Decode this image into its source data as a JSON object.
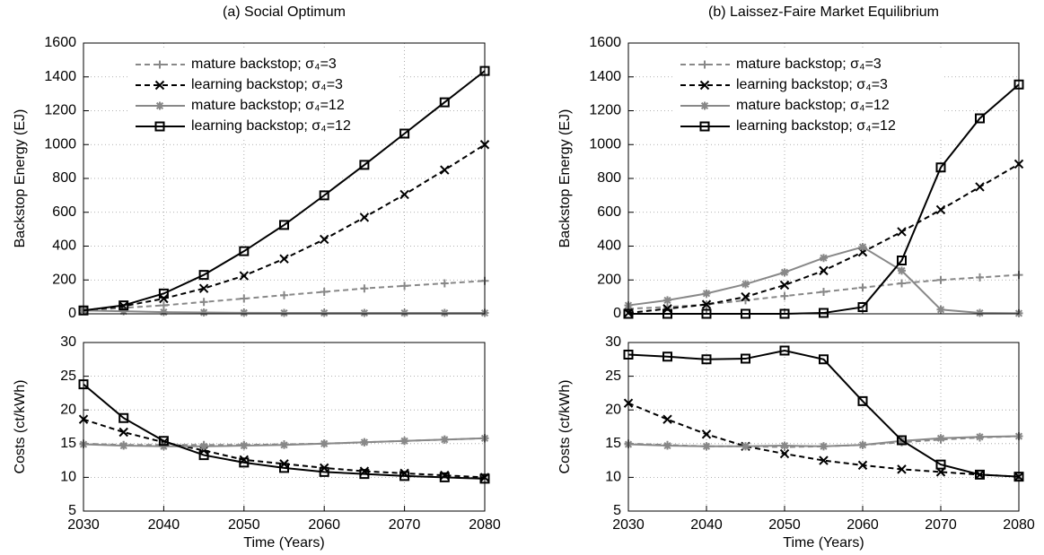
{
  "chart_data": [
    {
      "type": "line",
      "title": "(a) Social Optimum",
      "ylabel": "Backstop Energy (EJ)",
      "legend": "upper left",
      "grid": true,
      "x": [
        2030,
        2035,
        2040,
        2045,
        2050,
        2055,
        2060,
        2065,
        2070,
        2075,
        2080
      ],
      "xlim": [
        2030,
        2080
      ],
      "xticks": [
        2030,
        2040,
        2050,
        2060,
        2070,
        2080
      ],
      "ylim": [
        0,
        1600
      ],
      "yticks": [
        0,
        200,
        400,
        600,
        800,
        1000,
        1200,
        1400,
        1600
      ],
      "series": [
        {
          "name": "mature backstop; σ₄=3",
          "color": "#888888",
          "dash": "dashed",
          "marker": "plus",
          "values": [
            20,
            35,
            50,
            70,
            90,
            110,
            130,
            150,
            165,
            180,
            195
          ]
        },
        {
          "name": "learning backstop; σ₄=3",
          "color": "#000000",
          "dash": "dashed",
          "marker": "x",
          "values": [
            20,
            45,
            90,
            150,
            225,
            325,
            440,
            570,
            705,
            850,
            1000
          ]
        },
        {
          "name": "mature backstop; σ₄=12",
          "color": "#888888",
          "dash": "solid",
          "marker": "star",
          "values": [
            20,
            15,
            10,
            8,
            6,
            5,
            5,
            5,
            5,
            5,
            5
          ]
        },
        {
          "name": "learning backstop; σ₄=12",
          "color": "#000000",
          "dash": "solid",
          "marker": "square",
          "values": [
            20,
            50,
            120,
            230,
            370,
            525,
            700,
            880,
            1065,
            1250,
            1435
          ]
        }
      ]
    },
    {
      "type": "line",
      "ylabel": "Costs (ct/kWh)",
      "xlabel": "Time (Years)",
      "grid": true,
      "x": [
        2030,
        2035,
        2040,
        2045,
        2050,
        2055,
        2060,
        2065,
        2070,
        2075,
        2080
      ],
      "xlim": [
        2030,
        2080
      ],
      "xticks": [
        2030,
        2040,
        2050,
        2060,
        2070,
        2080
      ],
      "ylim": [
        5,
        30
      ],
      "yticks": [
        5,
        10,
        15,
        20,
        25,
        30
      ],
      "series": [
        {
          "color": "#888888",
          "dash": "dashed",
          "marker": "plus",
          "values": [
            15,
            14.8,
            14.8,
            14.8,
            14.8,
            14.9,
            15,
            15.2,
            15.4,
            15.6,
            15.8
          ]
        },
        {
          "color": "#000000",
          "dash": "dashed",
          "marker": "x",
          "values": [
            18.6,
            16.7,
            15.2,
            14,
            12.6,
            12,
            11.4,
            10.9,
            10.6,
            10.3,
            10
          ]
        },
        {
          "color": "#888888",
          "dash": "solid",
          "marker": "star",
          "values": [
            14.9,
            14.7,
            14.6,
            14.6,
            14.7,
            14.8,
            15,
            15.2,
            15.4,
            15.6,
            15.8
          ]
        },
        {
          "color": "#000000",
          "dash": "solid",
          "marker": "square",
          "values": [
            23.8,
            18.8,
            15.4,
            13.3,
            12.2,
            11.4,
            10.8,
            10.5,
            10.2,
            10,
            9.8
          ]
        }
      ]
    },
    {
      "type": "line",
      "title": "(b) Laissez-Faire Market Equilibrium",
      "ylabel": "Backstop Energy (EJ)",
      "legend": "upper left",
      "grid": true,
      "x": [
        2030,
        2035,
        2040,
        2045,
        2050,
        2055,
        2060,
        2065,
        2070,
        2075,
        2080
      ],
      "xlim": [
        2030,
        2080
      ],
      "xticks": [
        2030,
        2040,
        2050,
        2060,
        2070,
        2080
      ],
      "ylim": [
        0,
        1600
      ],
      "yticks": [
        0,
        200,
        400,
        600,
        800,
        1000,
        1200,
        1400,
        1600
      ],
      "series": [
        {
          "name": "mature backstop; σ₄=3",
          "color": "#888888",
          "dash": "dashed",
          "marker": "plus",
          "values": [
            30,
            40,
            55,
            80,
            105,
            130,
            155,
            180,
            200,
            215,
            230
          ]
        },
        {
          "name": "learning backstop; σ₄=3",
          "color": "#000000",
          "dash": "dashed",
          "marker": "x",
          "values": [
            5,
            30,
            55,
            100,
            170,
            255,
            365,
            485,
            615,
            750,
            885
          ]
        },
        {
          "name": "mature backstop; σ₄=12",
          "color": "#888888",
          "dash": "solid",
          "marker": "star",
          "values": [
            50,
            80,
            120,
            175,
            245,
            330,
            395,
            255,
            25,
            5,
            3
          ]
        },
        {
          "name": "learning backstop; σ₄=12",
          "color": "#000000",
          "dash": "solid",
          "marker": "square",
          "values": [
            0,
            0,
            0,
            0,
            0,
            5,
            40,
            315,
            865,
            1155,
            1355
          ]
        }
      ]
    },
    {
      "type": "line",
      "ylabel": "Costs (ct/kWh)",
      "xlabel": "Time (Years)",
      "grid": true,
      "x": [
        2030,
        2035,
        2040,
        2045,
        2050,
        2055,
        2060,
        2065,
        2070,
        2075,
        2080
      ],
      "xlim": [
        2030,
        2080
      ],
      "xticks": [
        2030,
        2040,
        2050,
        2060,
        2070,
        2080
      ],
      "ylim": [
        5,
        30
      ],
      "yticks": [
        5,
        10,
        15,
        20,
        25,
        30
      ],
      "series": [
        {
          "color": "#888888",
          "dash": "dashed",
          "marker": "plus",
          "values": [
            15,
            14.8,
            14.6,
            14.6,
            14.5,
            14.6,
            14.8,
            15.2,
            15.6,
            15.9,
            16.1
          ]
        },
        {
          "color": "#000000",
          "dash": "dashed",
          "marker": "x",
          "values": [
            21,
            18.6,
            16.4,
            14.6,
            13.5,
            12.5,
            11.8,
            11.2,
            10.8,
            10.4,
            10.1
          ]
        },
        {
          "color": "#888888",
          "dash": "solid",
          "marker": "star",
          "values": [
            14.9,
            14.7,
            14.6,
            14.6,
            14.7,
            14.6,
            14.8,
            15.4,
            15.8,
            16,
            16.1
          ]
        },
        {
          "color": "#000000",
          "dash": "solid",
          "marker": "square",
          "values": [
            28.2,
            27.9,
            27.5,
            27.6,
            28.8,
            27.5,
            21.3,
            15.5,
            11.9,
            10.4,
            10.1
          ]
        }
      ]
    }
  ]
}
